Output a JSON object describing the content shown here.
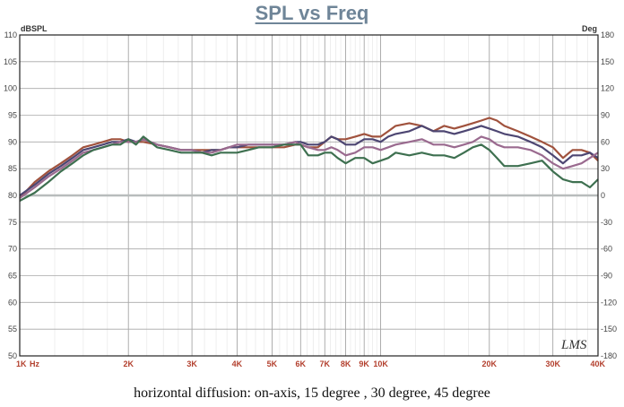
{
  "title": "SPL vs Freq",
  "caption": "horizontal diffusion: on-axis, 15 degree , 30 degree, 45 degree",
  "watermark": "LMS",
  "chart_data": {
    "type": "line",
    "title": "SPL vs Freq",
    "x_scale": "log",
    "xlim": [
      1000,
      40000
    ],
    "ylim": [
      50,
      110
    ],
    "y2lim": [
      -180,
      180
    ],
    "y_unit": "dBSPL",
    "y2_unit": "Deg",
    "grid": true,
    "x_ticks": [
      {
        "v": 1000,
        "label": "1K"
      },
      {
        "v": 2000,
        "label": "2K"
      },
      {
        "v": 3000,
        "label": "3K"
      },
      {
        "v": 4000,
        "label": "4K"
      },
      {
        "v": 5000,
        "label": "5K"
      },
      {
        "v": 6000,
        "label": "6K"
      },
      {
        "v": 7000,
        "label": "7K"
      },
      {
        "v": 8000,
        "label": "8K"
      },
      {
        "v": 9000,
        "label": "9K"
      },
      {
        "v": 10000,
        "label": "10K"
      },
      {
        "v": 20000,
        "label": "20K"
      },
      {
        "v": 30000,
        "label": "30K"
      },
      {
        "v": 40000,
        "label": "40K"
      }
    ],
    "x_unit_label": "Hz",
    "y_ticks": [
      110,
      105,
      100,
      95,
      90,
      85,
      80,
      75,
      70,
      65,
      60,
      55,
      50
    ],
    "y2_ticks": [
      180,
      150,
      120,
      90,
      60,
      30,
      0,
      -30,
      -60,
      -90,
      -120,
      -150,
      -180
    ],
    "series": [
      {
        "color": "#a0523d",
        "x": [
          1000,
          1100,
          1200,
          1300,
          1400,
          1500,
          1600,
          1700,
          1800,
          1900,
          2000,
          2100,
          2200,
          2400,
          2600,
          2800,
          3000,
          3200,
          3400,
          3600,
          3800,
          4000,
          4300,
          4600,
          5000,
          5400,
          5800,
          6000,
          6300,
          6700,
          7000,
          7300,
          7600,
          8000,
          8500,
          9000,
          9500,
          10000,
          10500,
          11000,
          12000,
          13000,
          14000,
          15000,
          16000,
          17000,
          18000,
          19000,
          20000,
          21000,
          22000,
          24000,
          26000,
          28000,
          30000,
          32000,
          34000,
          36000,
          38000,
          40000
        ],
        "y": [
          79.5,
          82.5,
          84.5,
          86,
          87.5,
          89,
          89.5,
          90,
          90.5,
          90.5,
          90,
          90,
          90,
          89.5,
          89,
          88.5,
          88.5,
          88.5,
          88.5,
          88.5,
          89,
          89,
          89,
          89,
          89,
          89,
          89.5,
          89.5,
          89,
          89,
          90,
          91,
          90.5,
          90.5,
          91,
          91.5,
          91,
          91,
          92,
          93,
          93.5,
          93,
          92,
          93,
          92.5,
          93,
          93.5,
          94,
          94.5,
          94,
          93,
          92,
          91,
          90,
          89,
          87,
          88.5,
          88.5,
          88,
          86.5
        ]
      },
      {
        "color": "#4d4672",
        "x": [
          1000,
          1100,
          1200,
          1300,
          1400,
          1500,
          1600,
          1700,
          1800,
          1900,
          2000,
          2100,
          2200,
          2400,
          2600,
          2800,
          3000,
          3200,
          3400,
          3600,
          3800,
          4000,
          4300,
          4600,
          5000,
          5400,
          5800,
          6000,
          6300,
          6700,
          7000,
          7300,
          7600,
          8000,
          8500,
          9000,
          9500,
          10000,
          10500,
          11000,
          12000,
          13000,
          14000,
          15000,
          16000,
          17000,
          18000,
          19000,
          20000,
          21000,
          22000,
          24000,
          26000,
          28000,
          30000,
          32000,
          34000,
          36000,
          38000,
          40000
        ],
        "y": [
          80,
          82,
          84,
          85.5,
          87,
          88.5,
          89,
          89.5,
          90,
          90,
          90.5,
          90,
          90.5,
          89.5,
          89,
          88.5,
          88.5,
          88,
          88.5,
          88.5,
          89,
          89,
          89.5,
          89.5,
          89.5,
          89.5,
          90,
          90,
          89.5,
          89.5,
          90,
          91,
          90.5,
          89.5,
          89.5,
          90.5,
          90.5,
          90,
          91,
          91.5,
          92,
          93,
          92,
          92,
          91.5,
          92,
          92.5,
          93,
          92.5,
          92,
          91.5,
          91,
          90,
          89,
          87.5,
          86,
          87.5,
          87.5,
          88,
          87
        ]
      },
      {
        "color": "#9a6a8f",
        "x": [
          1000,
          1100,
          1200,
          1300,
          1400,
          1500,
          1600,
          1700,
          1800,
          1900,
          2000,
          2100,
          2200,
          2400,
          2600,
          2800,
          3000,
          3200,
          3400,
          3600,
          3800,
          4000,
          4300,
          4600,
          5000,
          5400,
          5800,
          6000,
          6300,
          6700,
          7000,
          7300,
          7600,
          8000,
          8500,
          9000,
          9500,
          10000,
          10500,
          11000,
          12000,
          13000,
          14000,
          15000,
          16000,
          17000,
          18000,
          19000,
          20000,
          21000,
          22000,
          24000,
          26000,
          28000,
          30000,
          32000,
          34000,
          36000,
          38000,
          40000
        ],
        "y": [
          79.5,
          81.5,
          83.5,
          85,
          86.5,
          88,
          88.5,
          89,
          89.5,
          90,
          90,
          90,
          90.5,
          89.5,
          89,
          88.5,
          88.5,
          88,
          88,
          88.5,
          89,
          89.5,
          89.5,
          89.5,
          89.5,
          89.5,
          90,
          89.5,
          89,
          88.5,
          88.5,
          89,
          88.5,
          87.5,
          88,
          89,
          89,
          88.5,
          89,
          89.5,
          90,
          90.5,
          89.5,
          89.5,
          89,
          89.5,
          90,
          91,
          90.5,
          89.5,
          89,
          89,
          88.5,
          87.5,
          86,
          85,
          85.5,
          86,
          87,
          88
        ]
      },
      {
        "color": "#3e7050",
        "x": [
          1000,
          1100,
          1200,
          1300,
          1400,
          1500,
          1600,
          1700,
          1800,
          1900,
          2000,
          2100,
          2200,
          2400,
          2600,
          2800,
          3000,
          3200,
          3400,
          3600,
          3800,
          4000,
          4300,
          4600,
          5000,
          5400,
          5800,
          6000,
          6300,
          6700,
          7000,
          7300,
          7600,
          8000,
          8500,
          9000,
          9500,
          10000,
          10500,
          11000,
          12000,
          13000,
          14000,
          15000,
          16000,
          17000,
          18000,
          19000,
          20000,
          21000,
          22000,
          24000,
          26000,
          28000,
          30000,
          32000,
          34000,
          36000,
          38000,
          40000
        ],
        "y": [
          79,
          80.5,
          82.5,
          84.5,
          86,
          87.5,
          88.5,
          89,
          89.5,
          89.5,
          90.5,
          89.5,
          91,
          89,
          88.5,
          88,
          88,
          88,
          87.5,
          88,
          88,
          88,
          88.5,
          89,
          89,
          89.5,
          89.5,
          89.5,
          87.5,
          87.5,
          88,
          88,
          87,
          86,
          87,
          87,
          86,
          86.5,
          87,
          88,
          87.5,
          88,
          87.5,
          87.5,
          87,
          88,
          89,
          89.5,
          88.5,
          87,
          85.5,
          85.5,
          86,
          86.5,
          84.5,
          83,
          82.5,
          82.5,
          81.5,
          83
        ]
      }
    ]
  }
}
